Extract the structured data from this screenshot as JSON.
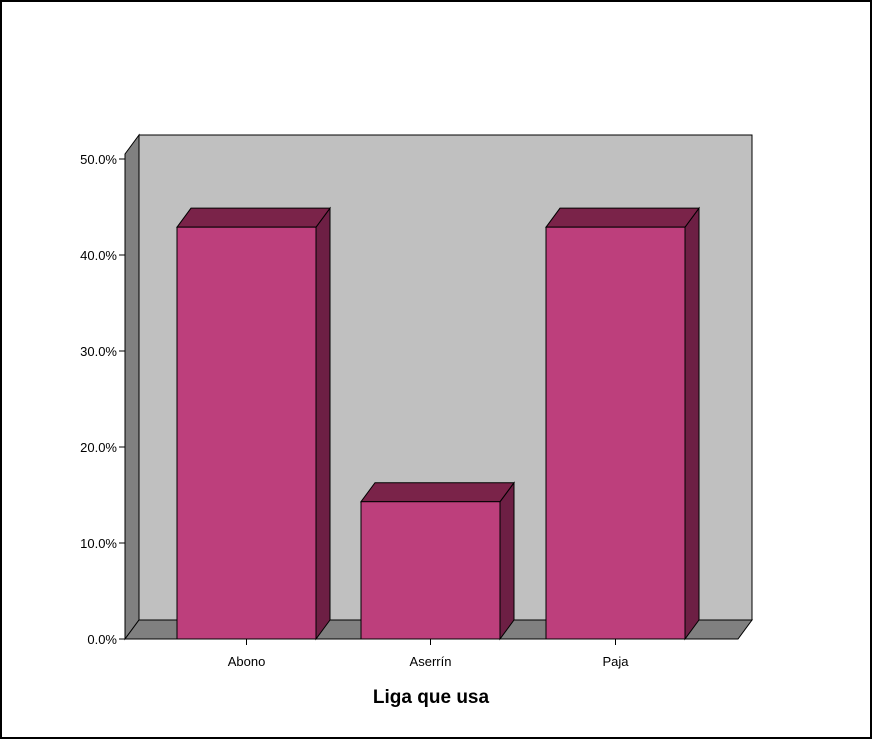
{
  "chart_data": {
    "type": "bar",
    "title": "",
    "xlabel": "Liga que usa",
    "ylabel": "",
    "categories": [
      "Abono",
      "Aserrín",
      "Paja"
    ],
    "values": [
      42.9,
      14.3,
      42.9
    ],
    "ylim": [
      0,
      50
    ],
    "yticks": [
      0,
      10,
      20,
      30,
      40,
      50
    ],
    "ytick_labels": [
      "0.0%",
      "10.0%",
      "20.0%",
      "30.0%",
      "40.0%",
      "50.0%"
    ],
    "grid": false,
    "legend": "none",
    "style": "3d",
    "colors": {
      "bar_front": "#bd3f7c",
      "bar_top": "#7a2349",
      "bar_side": "#6d1f44",
      "back_wall": "#c0c0c0",
      "side_wall": "#808080",
      "floor": "#808080"
    }
  }
}
